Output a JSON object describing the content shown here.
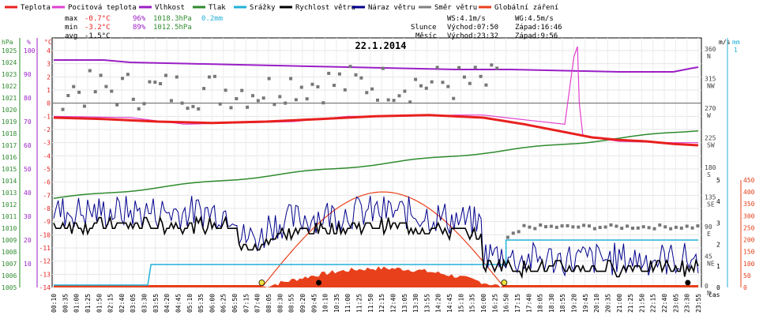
{
  "chart_data": {
    "type": "line",
    "title": "22.1.2014",
    "legend": [
      {
        "label": "Teplota",
        "color": "#e8201e"
      },
      {
        "label": "Pocitová teplota",
        "color": "#e040d0"
      },
      {
        "label": "Vlhkost",
        "color": "#9a1fc6"
      },
      {
        "label": "Tlak",
        "color": "#2e8b2e"
      },
      {
        "label": "Srážky",
        "color": "#22b0d8"
      },
      {
        "label": "Rychlost větru",
        "color": "#000000"
      },
      {
        "label": "Náraz větru",
        "color": "#00008c"
      },
      {
        "label": "Směr větru",
        "color": "#808080"
      },
      {
        "label": "Globální záření",
        "color": "#e8401a"
      }
    ],
    "stats": {
      "max_label": "max",
      "min_label": "min",
      "avg_label": "avg",
      "max_temp": "-0.7°C",
      "max_hum": "96%",
      "max_press": "1018.3hPa",
      "max_rain": "0.2mm",
      "min_temp": "-3.2°C",
      "min_hum": "89%",
      "min_press": "1012.5hPa",
      "avg_temp": "-1.5°C"
    },
    "astro": {
      "ws": "WS:4.1m/s",
      "wg": "WG:4.5m/s",
      "sun_label": "Slunce",
      "sunrise": "Východ:07:50",
      "sunset": "Západ:16:46",
      "moon_label": "Měsíc",
      "moonrise": "Východ:23:32",
      "moonset": "Západ:9:56"
    },
    "axes": {
      "hpa_unit": "hPa",
      "hpa_ticks": [
        "1025",
        "1024",
        "1023",
        "1022",
        "1021",
        "1020",
        "1019",
        "1018",
        "1017",
        "1016",
        "1015",
        "1014",
        "1013",
        "1012",
        "1011",
        "1010",
        "1009",
        "1008",
        "1007",
        "1006",
        "1005"
      ],
      "pct_unit": "%",
      "pct_ticks": [
        "100",
        "90",
        "80",
        "70",
        "60",
        "50",
        "40",
        "30",
        "20",
        "10"
      ],
      "temp_unit": "°C",
      "temp_ticks": [
        "4",
        "3",
        "2",
        "1",
        "0",
        "-1",
        "-2",
        "-3",
        "-4",
        "-5",
        "-6",
        "-7",
        "-8",
        "-9",
        "-10",
        "-11",
        "-12",
        "-13",
        "-14"
      ],
      "wind_unit": "m/s",
      "wind_ticks": [
        "5",
        "4",
        "3",
        "2",
        "1",
        "0"
      ],
      "rain_unit": "mm",
      "rain_top": "1",
      "dir_ticks": [
        {
          "deg": "360",
          "lab": "N"
        },
        {
          "deg": "315",
          "lab": "NW"
        },
        {
          "deg": "270",
          "lab": "W"
        },
        {
          "deg": "225",
          "lab": "SW"
        },
        {
          "deg": "180",
          "lab": "S"
        },
        {
          "deg": "135",
          "lab": "SE"
        },
        {
          "deg": "90",
          "lab": "E"
        },
        {
          "deg": "45",
          "lab": "NE"
        },
        {
          "deg": "0",
          "lab": "N"
        }
      ],
      "rad_ticks": [
        "450",
        "400",
        "350",
        "300",
        "250",
        "200",
        "150",
        "100",
        "50",
        "0"
      ],
      "x_label": "čas",
      "x_ticks": [
        "00:10",
        "00:35",
        "01:00",
        "01:25",
        "01:50",
        "02:15",
        "02:40",
        "03:05",
        "03:30",
        "03:55",
        "04:20",
        "04:45",
        "05:10",
        "05:35",
        "06:00",
        "06:25",
        "06:50",
        "07:15",
        "07:40",
        "08:05",
        "08:30",
        "08:55",
        "09:20",
        "09:45",
        "10:10",
        "10:35",
        "11:00",
        "11:25",
        "11:50",
        "12:15",
        "12:40",
        "13:05",
        "13:30",
        "13:55",
        "14:20",
        "14:45",
        "15:10",
        "15:35",
        "16:00",
        "16:25",
        "16:50",
        "17:15",
        "17:40",
        "18:05",
        "18:30",
        "18:55",
        "19:20",
        "19:45",
        "20:10",
        "20:35",
        "21:00",
        "21:25",
        "21:50",
        "22:15",
        "22:40",
        "23:05",
        "23:30",
        "23:55"
      ]
    },
    "series_summary": {
      "temperature_c": {
        "start": -1.1,
        "midday": -0.9,
        "end": -3.2
      },
      "humidity_pct": {
        "start": 96,
        "min": 89,
        "end": 92
      },
      "pressure_hpa": {
        "start": 1012.5,
        "end": 1018.3
      },
      "rain_mm": {
        "total": 0.2
      },
      "radiation_max": 400,
      "sunrise_time": "07:50",
      "sunset_time": "16:46"
    }
  }
}
